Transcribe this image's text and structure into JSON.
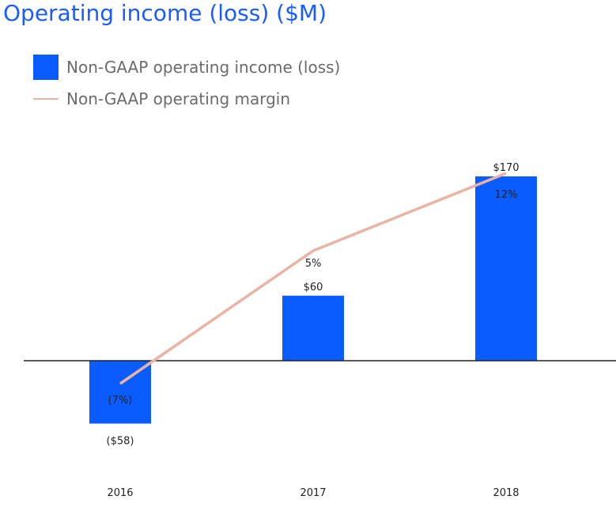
{
  "title": "Operating income (loss) ($M)",
  "legend": {
    "bar_label": "Non-GAAP operating income (loss)",
    "line_label": "Non-GAAP operating margin"
  },
  "colors": {
    "title": "#1a5cff",
    "bar": "#0a5cff",
    "line": "#e9b4a4",
    "axis": "#222222",
    "legend_text": "#6b6b6b"
  },
  "chart_data": {
    "type": "bar",
    "title": "Operating income (loss) ($M)",
    "categories": [
      "2016",
      "2017",
      "2018"
    ],
    "series": [
      {
        "name": "Non-GAAP operating income (loss)",
        "type": "bar",
        "values": [
          -58,
          60,
          170
        ],
        "labels": [
          "($58)",
          "$60",
          "$170"
        ]
      },
      {
        "name": "Non-GAAP operating margin",
        "type": "line",
        "values": [
          -7,
          5,
          12
        ],
        "labels": [
          "(7%)",
          "5%",
          "12%"
        ]
      }
    ],
    "ylim": [
      -58,
      170
    ],
    "grid": false,
    "legend_position": "top-left"
  }
}
